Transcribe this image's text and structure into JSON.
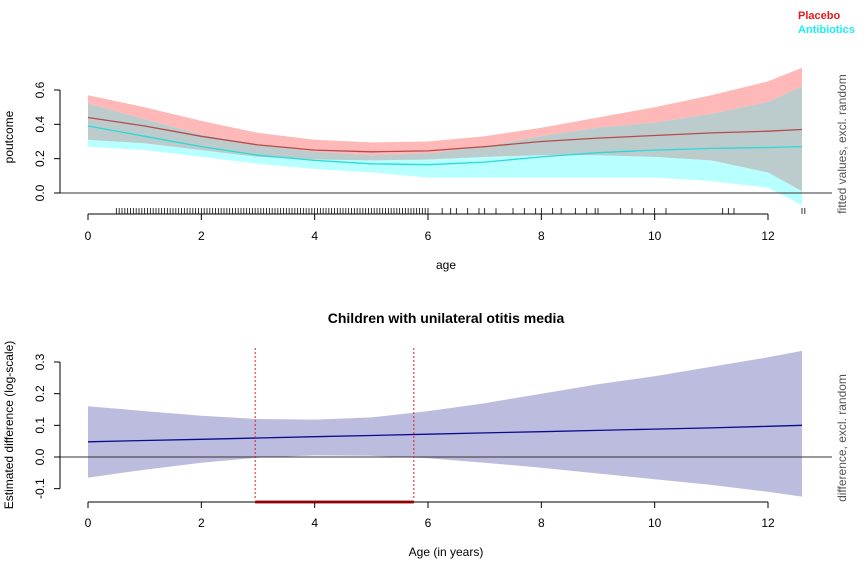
{
  "chart_data": [
    {
      "type": "line",
      "xlabel": "age",
      "ylabel": "poutcome",
      "right_label": "fitted values, excl. random",
      "xlim": [
        0,
        12.6
      ],
      "ylim": [
        0,
        0.6
      ],
      "xticks": [
        "0",
        "2",
        "4",
        "6",
        "8",
        "10",
        "12"
      ],
      "yticks": [
        "0.0",
        "0.2",
        "0.4",
        "0.6"
      ],
      "legend_position": "top-right",
      "grid": false,
      "reference_line": 0,
      "colors": {
        "Placebo": "#e8191f",
        "Antibiotics": "#19f0f0",
        "placebo_band": "#ffb8b8",
        "antibiotics_band": "#b8ffff",
        "overlap_band": "#bccccc",
        "placebo_line": "#b84a4a",
        "antibiotics_line": "#2ad9d9"
      },
      "series": [
        {
          "name": "Placebo",
          "x": [
            0,
            1,
            2,
            3,
            4,
            5,
            6,
            7,
            8,
            9,
            10,
            11,
            12,
            12.6
          ],
          "y": [
            0.44,
            0.39,
            0.33,
            0.28,
            0.25,
            0.24,
            0.245,
            0.27,
            0.3,
            0.32,
            0.335,
            0.35,
            0.36,
            0.37
          ],
          "lower": [
            0.31,
            0.29,
            0.25,
            0.21,
            0.195,
            0.19,
            0.195,
            0.21,
            0.22,
            0.22,
            0.21,
            0.19,
            0.12,
            0.01
          ],
          "upper": [
            0.57,
            0.5,
            0.42,
            0.35,
            0.31,
            0.295,
            0.3,
            0.33,
            0.38,
            0.44,
            0.5,
            0.57,
            0.65,
            0.73
          ]
        },
        {
          "name": "Antibiotics",
          "x": [
            0,
            1,
            2,
            3,
            4,
            5,
            6,
            7,
            8,
            9,
            10,
            11,
            12,
            12.6
          ],
          "y": [
            0.39,
            0.33,
            0.27,
            0.22,
            0.19,
            0.17,
            0.165,
            0.18,
            0.21,
            0.235,
            0.25,
            0.26,
            0.265,
            0.27
          ],
          "lower": [
            0.27,
            0.25,
            0.21,
            0.17,
            0.14,
            0.12,
            0.09,
            0.09,
            0.09,
            0.09,
            0.09,
            0.07,
            0.03,
            -0.07
          ],
          "upper": [
            0.52,
            0.43,
            0.34,
            0.28,
            0.24,
            0.22,
            0.23,
            0.27,
            0.33,
            0.38,
            0.41,
            0.46,
            0.53,
            0.62
          ]
        }
      ],
      "rug_ages": [
        0.5,
        0.55,
        0.6,
        0.65,
        0.7,
        0.75,
        0.8,
        0.85,
        0.9,
        0.95,
        1.0,
        1.05,
        1.1,
        1.15,
        1.2,
        1.25,
        1.3,
        1.35,
        1.4,
        1.45,
        1.5,
        1.55,
        1.6,
        1.65,
        1.7,
        1.75,
        1.8,
        1.85,
        1.9,
        1.95,
        2.0,
        2.05,
        2.1,
        2.15,
        2.2,
        2.25,
        2.3,
        2.35,
        2.4,
        2.45,
        2.5,
        2.55,
        2.6,
        2.65,
        2.7,
        2.75,
        2.8,
        2.85,
        2.9,
        2.95,
        3.0,
        3.05,
        3.1,
        3.15,
        3.2,
        3.25,
        3.3,
        3.35,
        3.4,
        3.45,
        3.5,
        3.55,
        3.6,
        3.65,
        3.7,
        3.75,
        3.8,
        3.85,
        3.9,
        3.95,
        4.0,
        4.05,
        4.1,
        4.15,
        4.2,
        4.25,
        4.3,
        4.35,
        4.4,
        4.45,
        4.5,
        4.55,
        4.6,
        4.65,
        4.7,
        4.75,
        4.8,
        4.85,
        4.9,
        4.95,
        5.0,
        5.05,
        5.1,
        5.15,
        5.2,
        5.25,
        5.3,
        5.35,
        5.4,
        5.45,
        5.5,
        5.55,
        5.6,
        5.65,
        5.7,
        5.75,
        5.8,
        5.85,
        5.9,
        5.95,
        6.0,
        6.25,
        6.4,
        6.5,
        6.7,
        6.9,
        7.0,
        7.2,
        7.5,
        7.7,
        7.9,
        8.0,
        8.2,
        8.35,
        8.6,
        8.8,
        8.95,
        9.0,
        9.4,
        9.6,
        9.8,
        10.0,
        10.2,
        11.2,
        11.3,
        11.4,
        12.6,
        12.65
      ]
    },
    {
      "type": "line",
      "title": "Children with unilateral otitis media",
      "xlabel": "Age (in years)",
      "ylabel": "Estimated difference (log-scale)",
      "right_label": "difference, excl. random",
      "xlim": [
        0,
        12.6
      ],
      "ylim": [
        -0.1,
        0.3
      ],
      "xticks": [
        "0",
        "2",
        "4",
        "6",
        "8",
        "10",
        "12"
      ],
      "yticks": [
        "-0.1",
        "0.0",
        "0.1",
        "0.2",
        "0.3"
      ],
      "grid": false,
      "reference_line": 0,
      "colors": {
        "line": "#0a0a8c",
        "band": "#bcbcdf",
        "significance": "#e8191f"
      },
      "series": [
        {
          "x": [
            0,
            1,
            2,
            3,
            4,
            5,
            6,
            7,
            8,
            9,
            10,
            11,
            12,
            12.6
          ],
          "y": [
            0.048,
            0.052,
            0.056,
            0.06,
            0.064,
            0.068,
            0.072,
            0.076,
            0.08,
            0.084,
            0.088,
            0.092,
            0.097,
            0.1
          ],
          "lower": [
            -0.065,
            -0.04,
            -0.018,
            -0.002,
            0.005,
            0.004,
            -0.004,
            -0.018,
            -0.034,
            -0.052,
            -0.07,
            -0.088,
            -0.11,
            -0.125
          ],
          "upper": [
            0.16,
            0.145,
            0.13,
            0.12,
            0.118,
            0.125,
            0.145,
            0.17,
            0.2,
            0.23,
            0.255,
            0.285,
            0.315,
            0.335
          ]
        }
      ],
      "significance_interval": [
        2.95,
        5.75
      ]
    }
  ],
  "legend": [
    {
      "label": "Placebo",
      "color": "#e8191f"
    },
    {
      "label": "Antibiotics",
      "color": "#19f0f0"
    }
  ]
}
